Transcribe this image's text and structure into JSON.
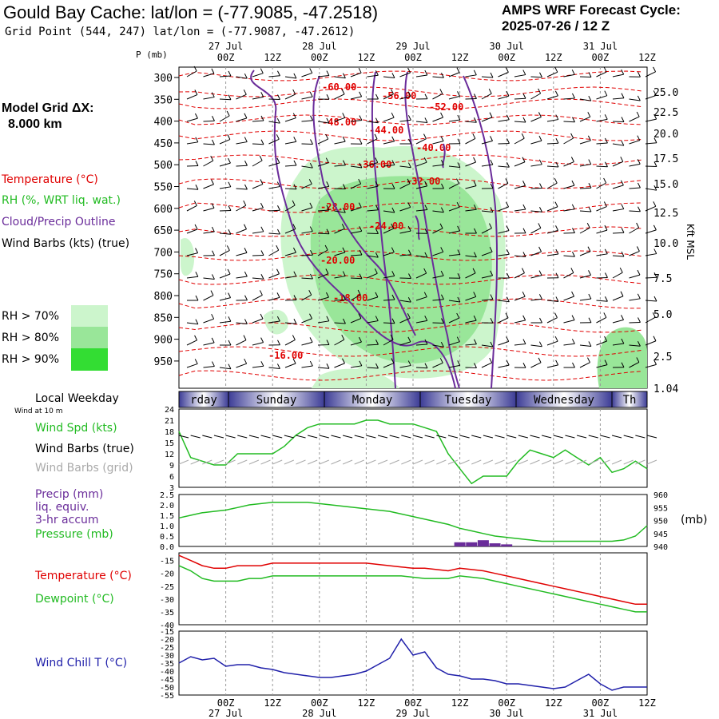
{
  "header": {
    "title": "Gould Bay Cache:  lat/lon = (-77.9085, -47.2518)",
    "grid_point": "Grid Point (544, 247) lat/lon = (-77.9087, -47.2612)",
    "cycle_label": "AMPS WRF Forecast Cycle:",
    "cycle_value": "2025-07-26 / 12  Z"
  },
  "left_labels": {
    "model_grid": "Model Grid ΔX:",
    "model_grid_value": "8.000 km",
    "temperature": "Temperature (°C)",
    "rh": "RH (%, WRT liq. wat.)",
    "cloud": "Cloud/Precip Outline",
    "wind_barbs": "Wind Barbs (kts) (true)",
    "rh_legend": [
      "RH > 70%",
      "RH > 80%",
      "RH > 90%"
    ],
    "local_weekday": "Local Weekday",
    "wind_10m": "Wind at 10 m",
    "wind_spd": "Wind Spd (kts)",
    "wind_barbs_true": "Wind Barbs (true)",
    "wind_barbs_grid": "Wind Barbs (grid)",
    "precip_lines": [
      "Precip (mm)",
      "liq. equiv.",
      "3-hr accum"
    ],
    "pressure": "Pressure (mb)",
    "pressure_unit": "(mb)",
    "temp2": "Temperature (°C)",
    "dewpoint": "Dewpoint (°C)",
    "windchill": "Wind Chill T (°C)",
    "kft": "Kft MSL",
    "p_axis": "P (mb)"
  },
  "colors": {
    "temperature": "#e00000",
    "rh70": "#ccf5cc",
    "rh80": "#99e699",
    "rh90": "#33dd33",
    "cloud": "#6a2c9a",
    "wind_spd": "#22bb22",
    "pressure": "#22bb22",
    "dewpoint": "#22bb22",
    "windchill": "#2020aa",
    "grid_barbs": "#aaaaaa",
    "weekday_bar": "#3c3c96"
  },
  "chart_data": [
    {
      "type": "heatmap",
      "name": "vertical cross-section",
      "x_top_dates": [
        "27 Jul",
        "28 Jul",
        "29 Jul",
        "30 Jul",
        "31 Jul"
      ],
      "x_ticks": [
        "00Z",
        "12Z",
        "00Z",
        "12Z",
        "00Z",
        "12Z",
        "00Z",
        "12Z",
        "00Z",
        "12Z"
      ],
      "y_pressure": [
        300,
        350,
        400,
        450,
        500,
        550,
        600,
        650,
        700,
        750,
        800,
        850,
        900,
        950
      ],
      "y_height_kft": [
        "25.0",
        "22.5",
        "20.0",
        "17.5",
        "15.0",
        "12.5",
        "10.0",
        "7.5",
        "5.0",
        "2.5",
        "1.04"
      ],
      "temperature_contour_labels": [
        "-60.00",
        "-56.00",
        "-52.00",
        "-48.00",
        "-44.00",
        "-40.00",
        "-36.00",
        "-32.00",
        "-28.00",
        "-24.00",
        "-20.00",
        "-18.00",
        "-16.00"
      ]
    },
    {
      "type": "line",
      "name": "wind speed",
      "xlabel": "Local Weekday",
      "weekdays": [
        "rday",
        "Sunday",
        "Monday",
        "Tuesday",
        "Wednesday",
        "Th"
      ],
      "y_ticks": [
        3,
        6,
        9,
        12,
        15,
        18,
        21,
        24
      ],
      "ylim": [
        3,
        24
      ],
      "x": [
        0,
        3,
        6,
        9,
        12,
        15,
        18,
        21,
        24,
        27,
        30,
        33,
        36,
        39,
        42,
        45,
        48,
        51,
        54,
        57,
        60,
        63,
        66,
        69,
        72,
        75,
        78,
        81,
        84,
        87,
        90,
        93,
        96,
        99,
        102,
        105,
        108,
        111,
        114,
        117,
        120
      ],
      "series": [
        {
          "name": "Wind Spd (kts)",
          "values": [
            18,
            11,
            10,
            9,
            9,
            12,
            12,
            12,
            12,
            14,
            17,
            19,
            20,
            20,
            20,
            20,
            21,
            21,
            20,
            20,
            20,
            19,
            18,
            12,
            8,
            4,
            6,
            6,
            6,
            10,
            13,
            12,
            11,
            13,
            11,
            9,
            11,
            7,
            8,
            10,
            8
          ]
        }
      ]
    },
    {
      "type": "line",
      "name": "pressure and precip",
      "y_ticks_left": [
        "0.0",
        "0.5",
        "1.0",
        "1.5",
        "2.0",
        "2.5"
      ],
      "y_ticks_right": [
        940,
        945,
        950,
        955,
        960
      ],
      "ylim_left": [
        0,
        2.5
      ],
      "ylim_right": [
        940,
        960
      ],
      "x": [
        0,
        3,
        6,
        9,
        12,
        15,
        18,
        21,
        24,
        27,
        30,
        33,
        36,
        39,
        42,
        45,
        48,
        51,
        54,
        57,
        60,
        63,
        66,
        69,
        72,
        75,
        78,
        81,
        84,
        87,
        90,
        93,
        96,
        99,
        102,
        105,
        108,
        111,
        114,
        117,
        120
      ],
      "series": [
        {
          "name": "Pressure (mb)",
          "axis": "right",
          "values": [
            951,
            952,
            953,
            953.5,
            954,
            955,
            956,
            956.5,
            957,
            957,
            957,
            957,
            956.5,
            956,
            955.5,
            955,
            954.5,
            954,
            953.5,
            952.5,
            951.5,
            950.5,
            949.5,
            948.5,
            947,
            946,
            945,
            944,
            943.5,
            943,
            942.5,
            942,
            942,
            942,
            942,
            942,
            942,
            942,
            942.5,
            944,
            948
          ]
        },
        {
          "name": "Precip (mm)",
          "axis": "left",
          "type": "bar",
          "values": [
            0,
            0,
            0,
            0,
            0,
            0,
            0,
            0,
            0,
            0,
            0,
            0,
            0,
            0,
            0,
            0,
            0,
            0,
            0,
            0,
            0,
            0,
            0,
            0,
            0.2,
            0.2,
            0.3,
            0.15,
            0.1,
            0,
            0,
            0,
            0,
            0,
            0,
            0,
            0,
            0,
            0,
            0,
            0
          ]
        }
      ]
    },
    {
      "type": "line",
      "name": "temperature and dewpoint",
      "y_ticks": [
        -40,
        -35,
        -30,
        -25,
        -20,
        -15
      ],
      "ylim": [
        -40,
        -12
      ],
      "x": [
        0,
        3,
        6,
        9,
        12,
        15,
        18,
        21,
        24,
        27,
        30,
        33,
        36,
        39,
        42,
        45,
        48,
        51,
        54,
        57,
        60,
        63,
        66,
        69,
        72,
        75,
        78,
        81,
        84,
        87,
        90,
        93,
        96,
        99,
        102,
        105,
        108,
        111,
        114,
        117,
        120
      ],
      "series": [
        {
          "name": "Temperature (°C)",
          "values": [
            -13,
            -15,
            -17,
            -18,
            -18,
            -17,
            -17,
            -17,
            -16,
            -16,
            -16,
            -16,
            -16,
            -16,
            -16,
            -16,
            -16,
            -16.5,
            -17,
            -17.5,
            -18,
            -18,
            -18.5,
            -19,
            -18,
            -18.5,
            -19,
            -20,
            -21,
            -22,
            -23,
            -24,
            -25,
            -26,
            -27,
            -28,
            -29,
            -30,
            -31,
            -32,
            -32
          ]
        },
        {
          "name": "Dewpoint (°C)",
          "values": [
            -17,
            -19,
            -22,
            -23,
            -23,
            -23,
            -22,
            -22,
            -21,
            -21,
            -21,
            -21,
            -21,
            -21,
            -21,
            -21,
            -21,
            -21,
            -21,
            -21,
            -21.5,
            -22,
            -22,
            -22,
            -21,
            -21.5,
            -22,
            -23,
            -24,
            -25,
            -26,
            -27,
            -28,
            -29,
            -30,
            -31,
            -32,
            -33,
            -34,
            -35,
            -35
          ]
        }
      ]
    },
    {
      "type": "line",
      "name": "wind chill",
      "y_ticks": [
        -55,
        -50,
        -45,
        -40,
        -35,
        -30,
        -25,
        -20,
        -15
      ],
      "ylim": [
        -55,
        -15
      ],
      "x_bottom_dates": [
        "27 Jul",
        "28 Jul",
        "29 Jul",
        "30 Jul",
        "31 Jul"
      ],
      "x_ticks": [
        "00Z",
        "12Z",
        "00Z",
        "12Z",
        "00Z",
        "12Z",
        "00Z",
        "12Z",
        "00Z",
        "12Z"
      ],
      "x": [
        0,
        3,
        6,
        9,
        12,
        15,
        18,
        21,
        24,
        27,
        30,
        33,
        36,
        39,
        42,
        45,
        48,
        51,
        54,
        57,
        60,
        63,
        66,
        69,
        72,
        75,
        78,
        81,
        84,
        87,
        90,
        93,
        96,
        99,
        102,
        105,
        108,
        111,
        114,
        117,
        120
      ],
      "series": [
        {
          "name": "Wind Chill T (°C)",
          "values": [
            -35,
            -31,
            -33,
            -32,
            -37,
            -36,
            -36,
            -38,
            -39,
            -41,
            -42,
            -43,
            -44,
            -44,
            -43,
            -42,
            -40,
            -36,
            -32,
            -20,
            -30,
            -28,
            -38,
            -42,
            -43,
            -45,
            -45,
            -46,
            -48,
            -48,
            -49,
            -50,
            -51,
            -50,
            -46,
            -42,
            -48,
            -52,
            -50,
            -50,
            -50
          ]
        }
      ]
    }
  ]
}
